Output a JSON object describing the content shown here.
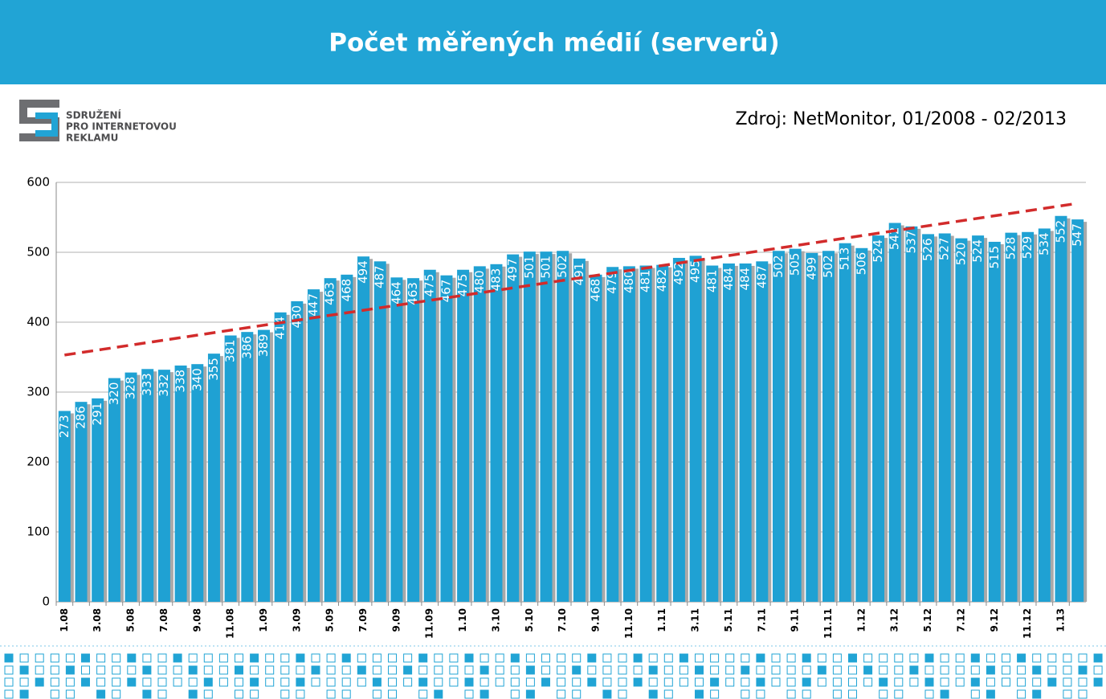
{
  "chart_data": {
    "type": "bar",
    "title": "Počet měřených médií (serverů)",
    "source": "Zdroj: NetMonitor, 01/2008 - 02/2013",
    "logo": [
      "SDRUŽENÍ",
      "PRO INTERNETOVOU",
      "REKLAMU"
    ],
    "categories": [
      "1.08",
      null,
      "3.08",
      null,
      "5.08",
      null,
      "7.08",
      null,
      "9.08",
      null,
      "11.08",
      null,
      "1.09",
      null,
      "3.09",
      null,
      "5.09",
      null,
      "7.09",
      null,
      "9.09",
      null,
      "11.09",
      null,
      "1.10",
      null,
      "3.10",
      null,
      "5.10",
      null,
      "7.10",
      null,
      "9.10",
      null,
      "11.10",
      null,
      "1.11",
      null,
      "3.11",
      null,
      "5.11",
      null,
      "7.11",
      null,
      "9.11",
      null,
      "11.11",
      null,
      "1.12",
      null,
      "3.12",
      null,
      "5.12",
      null,
      "7.12",
      null,
      "9.12",
      null,
      "11.12",
      null,
      "1.13",
      null
    ],
    "values": [
      273,
      286,
      291,
      320,
      328,
      333,
      332,
      338,
      340,
      355,
      381,
      386,
      389,
      414,
      430,
      447,
      463,
      468,
      494,
      487,
      464,
      463,
      475,
      467,
      475,
      480,
      483,
      497,
      501,
      501,
      502,
      491,
      468,
      479,
      480,
      481,
      482,
      492,
      495,
      481,
      484,
      484,
      487,
      502,
      505,
      499,
      502,
      513,
      506,
      524,
      542,
      537,
      526,
      527,
      520,
      524,
      515,
      528,
      529,
      534,
      552,
      547
    ],
    "color": "#1fa1d3",
    "trendline": {
      "start": 353,
      "end": 570,
      "color": "#d22b2b"
    },
    "ylim": [
      0,
      600
    ],
    "yticks": [
      0,
      100,
      200,
      300,
      400,
      500,
      600
    ],
    "grid": true
  }
}
